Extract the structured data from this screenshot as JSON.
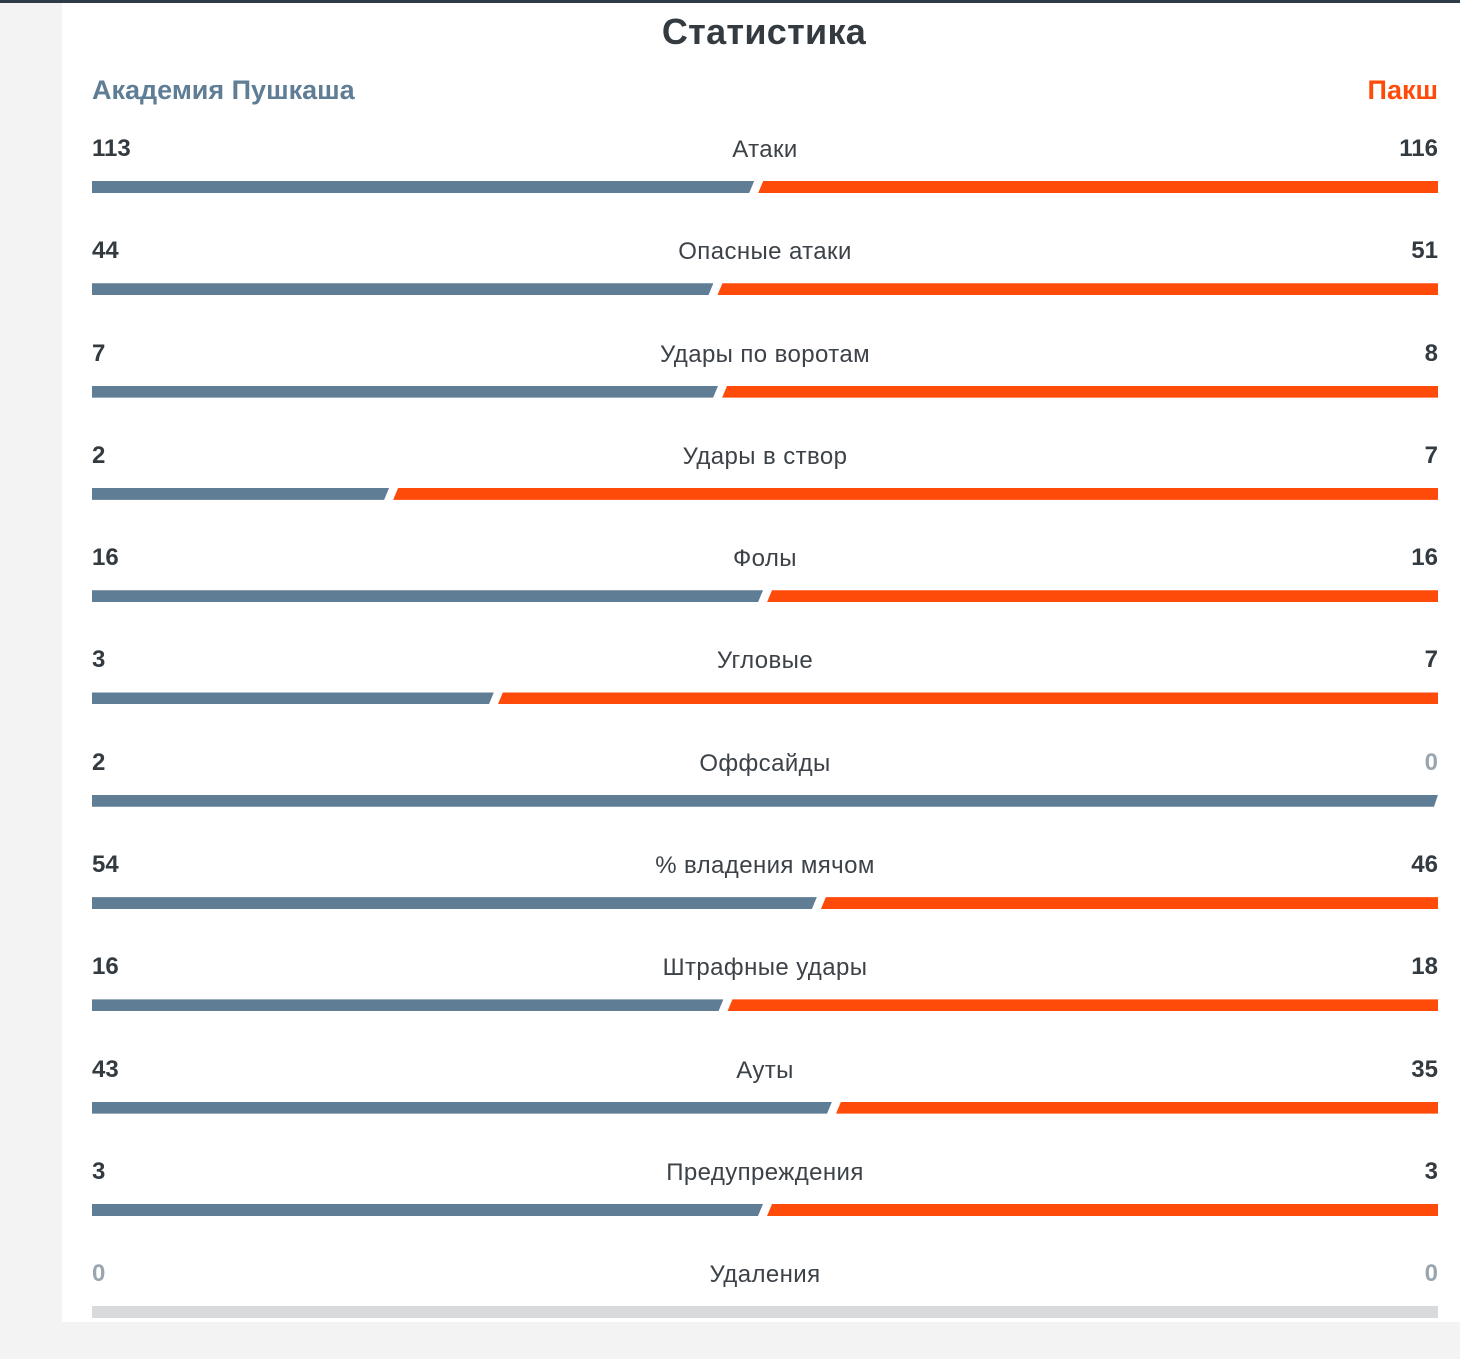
{
  "title": "Статистика",
  "teams": {
    "home": "Академия Пушкаша",
    "away": "Пакш"
  },
  "colors": {
    "home": "#5f7d95",
    "away": "#ff4b0a",
    "empty": "#d9dadc"
  },
  "stats": [
    {
      "label": "Атаки",
      "home": "113",
      "away": "116"
    },
    {
      "label": "Опасные атаки",
      "home": "44",
      "away": "51"
    },
    {
      "label": "Удары по воротам",
      "home": "7",
      "away": "8"
    },
    {
      "label": "Удары в створ",
      "home": "2",
      "away": "7"
    },
    {
      "label": "Фолы",
      "home": "16",
      "away": "16"
    },
    {
      "label": "Угловые",
      "home": "3",
      "away": "7"
    },
    {
      "label": "Оффсайды",
      "home": "2",
      "away": "0"
    },
    {
      "label": "% владения мячом",
      "home": "54",
      "away": "46"
    },
    {
      "label": "Штрафные удары",
      "home": "16",
      "away": "18"
    },
    {
      "label": "Ауты",
      "home": "43",
      "away": "35"
    },
    {
      "label": "Предупреждения",
      "home": "3",
      "away": "3"
    },
    {
      "label": "Удаления",
      "home": "0",
      "away": "0"
    }
  ]
}
